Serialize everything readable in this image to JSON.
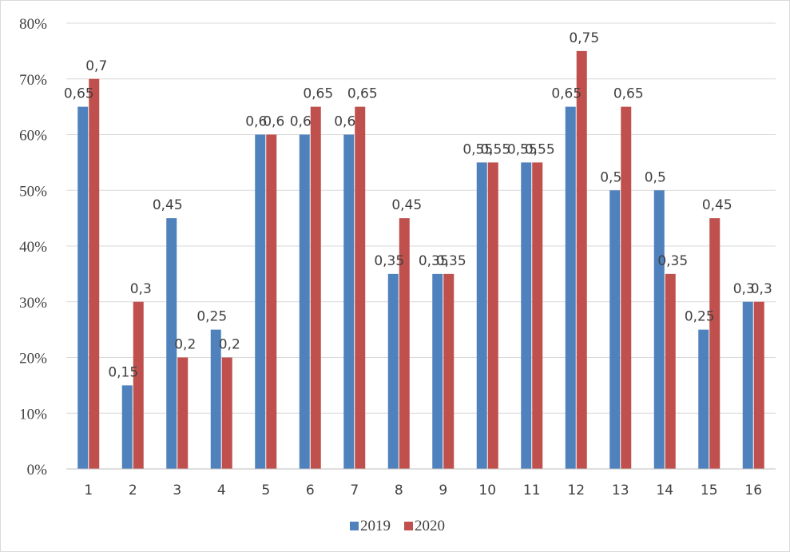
{
  "chart_data": {
    "type": "bar",
    "title": "",
    "xlabel": "",
    "ylabel": "",
    "categories": [
      "1",
      "2",
      "3",
      "4",
      "5",
      "6",
      "7",
      "8",
      "9",
      "10",
      "11",
      "12",
      "13",
      "14",
      "15",
      "16"
    ],
    "ylim": [
      0,
      0.8
    ],
    "yticks": [
      0,
      0.1,
      0.2,
      0.3,
      0.4,
      0.5,
      0.6,
      0.7,
      0.8
    ],
    "ytick_labels": [
      "0%",
      "10%",
      "20%",
      "30%",
      "40%",
      "50%",
      "60%",
      "70%",
      "80%"
    ],
    "grid": true,
    "legend_position": "bottom",
    "series": [
      {
        "name": "2019",
        "color": "#4f81bd",
        "values": [
          0.65,
          0.15,
          0.45,
          0.25,
          0.6,
          0.6,
          0.6,
          0.35,
          0.35,
          0.55,
          0.55,
          0.65,
          0.5,
          0.5,
          0.25,
          0.3
        ],
        "labels": [
          "0,65",
          "0,15",
          "0,45",
          "0,25",
          "0,6",
          "0,6",
          "0,6",
          "0,35",
          "0,35",
          "0,55",
          "0,55",
          "0,65",
          "0,5",
          "0,5",
          "0,25",
          "0,3"
        ]
      },
      {
        "name": "2020",
        "color": "#c0504d",
        "values": [
          0.7,
          0.3,
          0.2,
          0.2,
          0.6,
          0.65,
          0.65,
          0.45,
          0.35,
          0.55,
          0.55,
          0.75,
          0.65,
          0.35,
          0.45,
          0.3
        ],
        "labels": [
          "0,7",
          "0,3",
          "0,2",
          "0,2",
          "0,6",
          "0,65",
          "0,65",
          "0,45",
          "0,35",
          "0,55",
          "0,55",
          "0,75",
          "0,65",
          "0,35",
          "0,45",
          "0,3"
        ]
      }
    ]
  }
}
